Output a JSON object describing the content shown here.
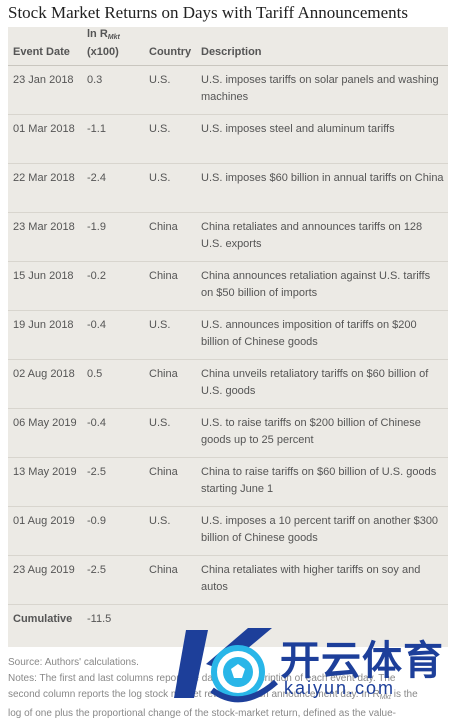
{
  "title": "Stock Market Returns on Days with Tariff Announcements",
  "table": {
    "headers": {
      "event_date": "Event Date",
      "ln_prefix": "ln R",
      "ln_sub": "Mkt",
      "ln_suffix": "(x100)",
      "country": "Country",
      "description": "Description"
    },
    "rows": [
      {
        "date": "23 Jan 2018",
        "value": "0.3",
        "country": "U.S.",
        "description": "U.S. imposes tariffs on solar panels and washing machines"
      },
      {
        "date": "01 Mar 2018",
        "value": "-1.1",
        "country": "U.S.",
        "description": "U.S. imposes steel and aluminum tariffs"
      },
      {
        "date": "22 Mar 2018",
        "value": "-2.4",
        "country": "U.S.",
        "description": "U.S. imposes $60 billion in annual tariffs on China"
      },
      {
        "date": "23 Mar 2018",
        "value": "-1.9",
        "country": "China",
        "description": "China retaliates and announces tariffs on 128 U.S. exports"
      },
      {
        "date": "15 Jun 2018",
        "value": "-0.2",
        "country": "China",
        "description": "China announces retaliation against U.S. tariffs on $50 billion of imports"
      },
      {
        "date": "19 Jun 2018",
        "value": "-0.4",
        "country": "U.S.",
        "description": "U.S. announces imposition of tariffs on $200 billion of Chinese goods"
      },
      {
        "date": "02 Aug 2018",
        "value": "0.5",
        "country": "China",
        "description": "China unveils retaliatory tariffs on $60 billion of U.S. goods"
      },
      {
        "date": "06 May 2019",
        "value": "-0.4",
        "country": "U.S.",
        "description": "U.S. to raise tariffs on $200 billion of Chinese goods up to 25 percent"
      },
      {
        "date": "13 May 2019",
        "value": "-2.5",
        "country": "China",
        "description": "China to raise tariffs on $60 billion of U.S. goods starting June 1"
      },
      {
        "date": "01 Aug 2019",
        "value": "-0.9",
        "country": "U.S.",
        "description": "U.S. imposes a 10 percent tariff on another $300 billion of Chinese goods"
      },
      {
        "date": "23 Aug 2019",
        "value": "-2.5",
        "country": "China",
        "description": "China retaliates with higher tariffs on soy and autos"
      }
    ],
    "cumulative": {
      "label": "Cumulative",
      "value": "-11.5"
    }
  },
  "notes": {
    "source": "Source: Authors' calculations.",
    "line1": "Notes: The first and last columns report the date and description of each event day. The",
    "line2": "second column reports the log stock market return on each announcement day. In R",
    "line2_sub": "Mkt",
    "line2_end": " is the",
    "line3": "log of one plus the proportional change of the stock-market return, defined as the value-"
  },
  "watermark": {
    "cn_text": "开云体育",
    "url_text": "kaiyun.com",
    "colors": {
      "blue": "#1d3f9a",
      "cyan": "#29b6e8"
    }
  }
}
